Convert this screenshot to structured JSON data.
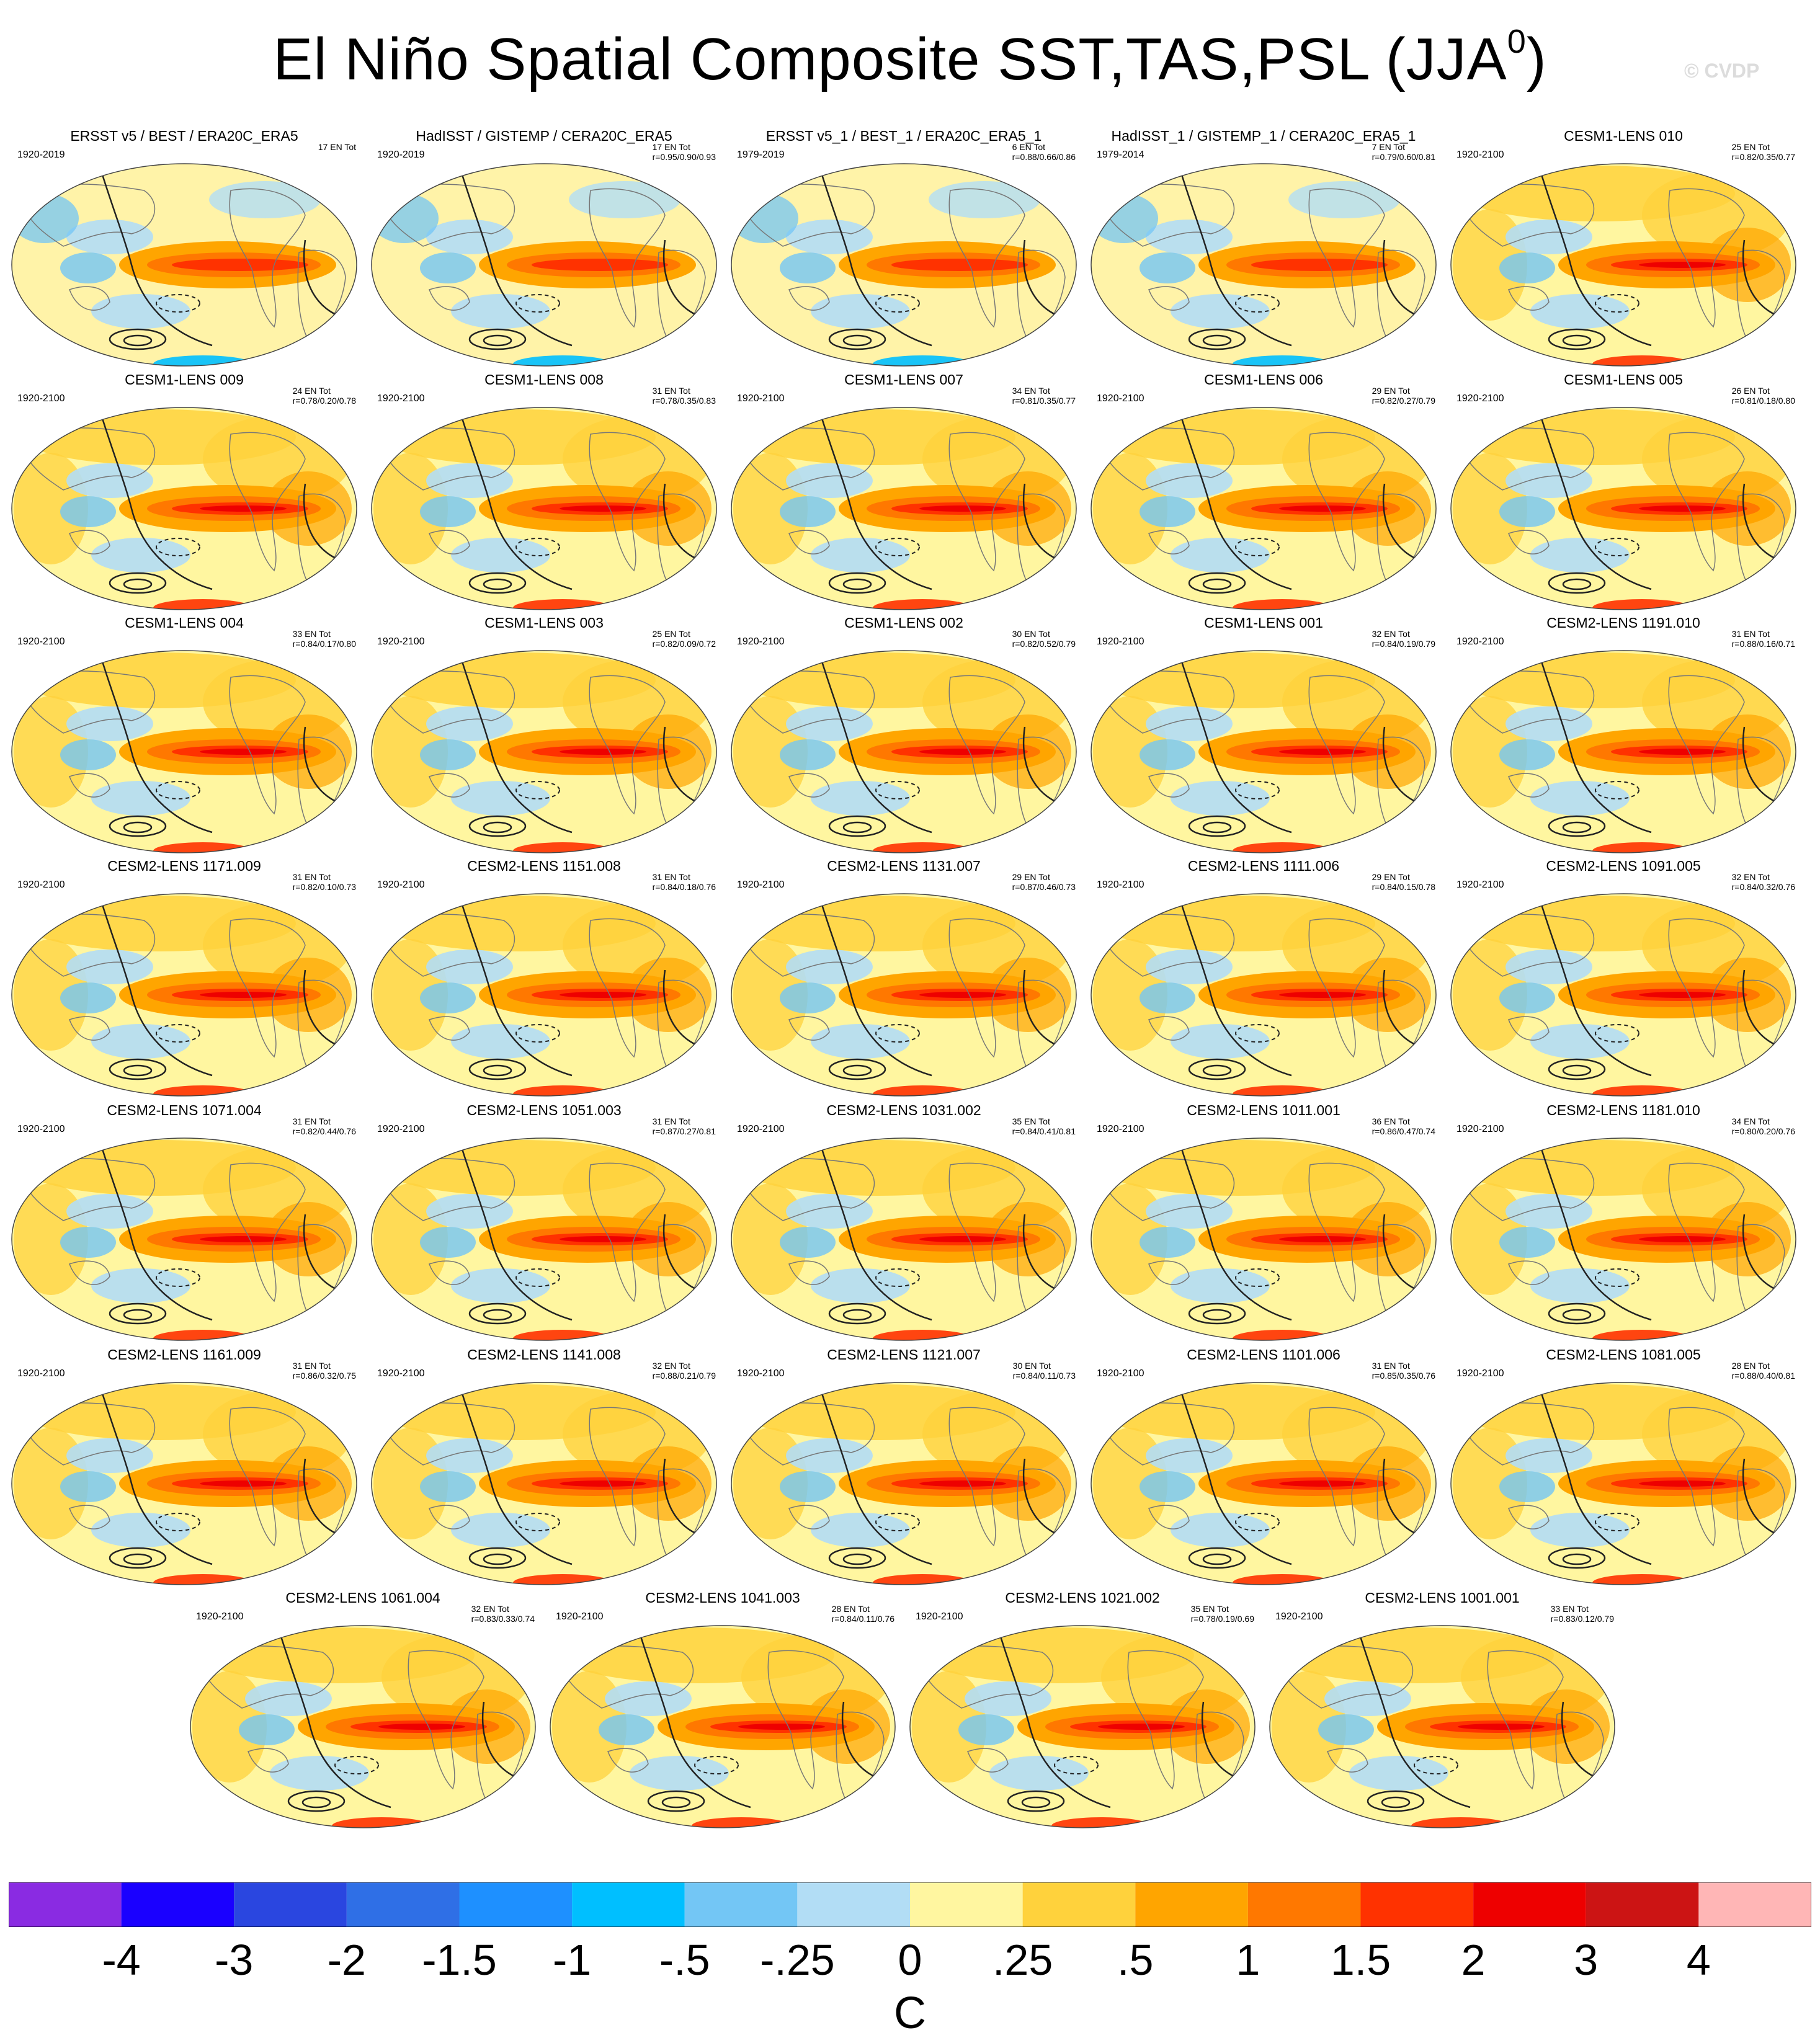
{
  "title": "El Niño Spatial Composite SST,TAS,PSL (JJA",
  "title_sup": "0",
  "title_close": ")",
  "watermark": "© CVDP",
  "units": "C",
  "colors": {
    "ocean_base": "#fff6a0",
    "land_outline": "#777777",
    "contour": "#222222"
  },
  "colorbar": {
    "levels": [
      "-4",
      "-3",
      "-2",
      "-1.5",
      "-1",
      "-.5",
      "-.25",
      "0",
      ".25",
      ".5",
      "1",
      "1.5",
      "2",
      "3",
      "4"
    ],
    "colors": [
      "#8a2be2",
      "#1a00ff",
      "#2a46e0",
      "#2f6fe6",
      "#1e90ff",
      "#00bfff",
      "#73c6f5",
      "#b2ddf5",
      "#fff6a0",
      "#ffd23c",
      "#ffa500",
      "#ff7800",
      "#ff3200",
      "#ee0000",
      "#cc1414",
      "#ffb6b6"
    ]
  },
  "panels": [
    {
      "title": "ERSST v5 / BEST / ERA20C_ERA5",
      "years": "1920-2019",
      "ens": "17 EN Tot",
      "stats": ""
    },
    {
      "title": "HadISST / GISTEMP / CERA20C_ERA5",
      "years": "1920-2019",
      "ens": "17 EN Tot",
      "stats": "r=0.95/0.90/0.93"
    },
    {
      "title": "ERSST v5_1 / BEST_1 / ERA20C_ERA5_1",
      "years": "1979-2019",
      "ens": "6 EN Tot",
      "stats": "r=0.88/0.66/0.86"
    },
    {
      "title": "HadISST_1 / GISTEMP_1 / CERA20C_ERA5_1",
      "years": "1979-2014",
      "ens": "7 EN Tot",
      "stats": "r=0.79/0.60/0.81"
    },
    {
      "title": "CESM1-LENS 010",
      "years": "1920-2100",
      "ens": "25 EN Tot",
      "stats": "r=0.82/0.35/0.77"
    },
    {
      "title": "CESM1-LENS 009",
      "years": "1920-2100",
      "ens": "24 EN Tot",
      "stats": "r=0.78/0.20/0.78"
    },
    {
      "title": "CESM1-LENS 008",
      "years": "1920-2100",
      "ens": "31 EN Tot",
      "stats": "r=0.78/0.35/0.83"
    },
    {
      "title": "CESM1-LENS 007",
      "years": "1920-2100",
      "ens": "34 EN Tot",
      "stats": "r=0.81/0.35/0.77"
    },
    {
      "title": "CESM1-LENS 006",
      "years": "1920-2100",
      "ens": "29 EN Tot",
      "stats": "r=0.82/0.27/0.79"
    },
    {
      "title": "CESM1-LENS 005",
      "years": "1920-2100",
      "ens": "26 EN Tot",
      "stats": "r=0.81/0.18/0.80"
    },
    {
      "title": "CESM1-LENS 004",
      "years": "1920-2100",
      "ens": "33 EN Tot",
      "stats": "r=0.84/0.17/0.80"
    },
    {
      "title": "CESM1-LENS 003",
      "years": "1920-2100",
      "ens": "25 EN Tot",
      "stats": "r=0.82/0.09/0.72"
    },
    {
      "title": "CESM1-LENS 002",
      "years": "1920-2100",
      "ens": "30 EN Tot",
      "stats": "r=0.82/0.52/0.79"
    },
    {
      "title": "CESM1-LENS 001",
      "years": "1920-2100",
      "ens": "32 EN Tot",
      "stats": "r=0.84/0.19/0.79"
    },
    {
      "title": "CESM2-LENS 1191.010",
      "years": "1920-2100",
      "ens": "31 EN Tot",
      "stats": "r=0.88/0.16/0.71"
    },
    {
      "title": "CESM2-LENS 1171.009",
      "years": "1920-2100",
      "ens": "31 EN Tot",
      "stats": "r=0.82/0.10/0.73"
    },
    {
      "title": "CESM2-LENS 1151.008",
      "years": "1920-2100",
      "ens": "31 EN Tot",
      "stats": "r=0.84/0.18/0.76"
    },
    {
      "title": "CESM2-LENS 1131.007",
      "years": "1920-2100",
      "ens": "29 EN Tot",
      "stats": "r=0.87/0.46/0.73"
    },
    {
      "title": "CESM2-LENS 1111.006",
      "years": "1920-2100",
      "ens": "29 EN Tot",
      "stats": "r=0.84/0.15/0.78"
    },
    {
      "title": "CESM2-LENS 1091.005",
      "years": "1920-2100",
      "ens": "32 EN Tot",
      "stats": "r=0.84/0.32/0.76"
    },
    {
      "title": "CESM2-LENS 1071.004",
      "years": "1920-2100",
      "ens": "31 EN Tot",
      "stats": "r=0.82/0.44/0.76"
    },
    {
      "title": "CESM2-LENS 1051.003",
      "years": "1920-2100",
      "ens": "31 EN Tot",
      "stats": "r=0.87/0.27/0.81"
    },
    {
      "title": "CESM2-LENS 1031.002",
      "years": "1920-2100",
      "ens": "35 EN Tot",
      "stats": "r=0.84/0.41/0.81"
    },
    {
      "title": "CESM2-LENS 1011.001",
      "years": "1920-2100",
      "ens": "36 EN Tot",
      "stats": "r=0.86/0.47/0.74"
    },
    {
      "title": "CESM2-LENS 1181.010",
      "years": "1920-2100",
      "ens": "34 EN Tot",
      "stats": "r=0.80/0.20/0.76"
    },
    {
      "title": "CESM2-LENS 1161.009",
      "years": "1920-2100",
      "ens": "31 EN Tot",
      "stats": "r=0.86/0.32/0.75"
    },
    {
      "title": "CESM2-LENS 1141.008",
      "years": "1920-2100",
      "ens": "32 EN Tot",
      "stats": "r=0.88/0.21/0.79"
    },
    {
      "title": "CESM2-LENS 1121.007",
      "years": "1920-2100",
      "ens": "30 EN Tot",
      "stats": "r=0.84/0.11/0.73"
    },
    {
      "title": "CESM2-LENS 1101.006",
      "years": "1920-2100",
      "ens": "31 EN Tot",
      "stats": "r=0.85/0.35/0.76"
    },
    {
      "title": "CESM2-LENS 1081.005",
      "years": "1920-2100",
      "ens": "28 EN Tot",
      "stats": "r=0.88/0.40/0.81"
    },
    {
      "title": "CESM2-LENS 1061.004",
      "years": "1920-2100",
      "ens": "32 EN Tot",
      "stats": "r=0.83/0.33/0.74"
    },
    {
      "title": "CESM2-LENS 1041.003",
      "years": "1920-2100",
      "ens": "28 EN Tot",
      "stats": "r=0.84/0.11/0.76"
    },
    {
      "title": "CESM2-LENS 1021.002",
      "years": "1920-2100",
      "ens": "35 EN Tot",
      "stats": "r=0.78/0.19/0.69"
    },
    {
      "title": "CESM2-LENS 1001.001",
      "years": "1920-2100",
      "ens": "33 EN Tot",
      "stats": "r=0.83/0.12/0.79"
    }
  ]
}
